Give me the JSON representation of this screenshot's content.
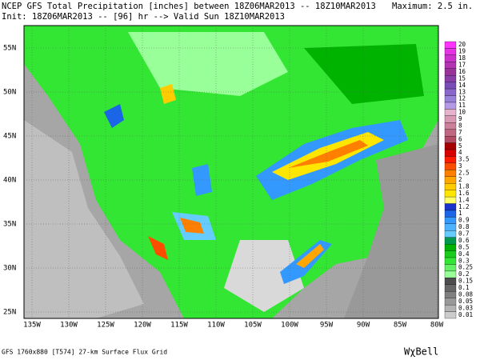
{
  "header": {
    "title": "NCEP GFS Total Precipitation [inches] between 18Z06MAR2013 -- 18Z10MAR2013",
    "maximum": "Maximum:  2.5 in.",
    "init": "Init: 18Z06MAR2013 -- [96] hr --> Valid Sun 18Z10MAR2013"
  },
  "map": {
    "lat_labels": [
      "55N",
      "50N",
      "45N",
      "40N",
      "35N",
      "30N",
      "25N"
    ],
    "lon_labels": [
      "135W",
      "130W",
      "125W",
      "120W",
      "115W",
      "110W",
      "105W",
      "100W",
      "95W",
      "90W",
      "85W",
      "80W"
    ]
  },
  "legend": {
    "items": [
      {
        "label": "20",
        "color": "#ff33ff"
      },
      {
        "label": "19",
        "color": "#e633e6"
      },
      {
        "label": "18",
        "color": "#cc33cc"
      },
      {
        "label": "17",
        "color": "#b333b3"
      },
      {
        "label": "16",
        "color": "#993399"
      },
      {
        "label": "15",
        "color": "#8a3fa8"
      },
      {
        "label": "14",
        "color": "#7a4cb8"
      },
      {
        "label": "13",
        "color": "#8a66cc"
      },
      {
        "label": "12",
        "color": "#9980d9"
      },
      {
        "label": "11",
        "color": "#b399e6"
      },
      {
        "label": "10",
        "color": "#e6b3cc"
      },
      {
        "label": "9",
        "color": "#d999b3"
      },
      {
        "label": "8",
        "color": "#cc8099"
      },
      {
        "label": "7",
        "color": "#bf6680"
      },
      {
        "label": "6",
        "color": "#b34d66"
      },
      {
        "label": "5",
        "color": "#a60000"
      },
      {
        "label": "4",
        "color": "#d90000"
      },
      {
        "label": "3.5",
        "color": "#ff1a00"
      },
      {
        "label": "3",
        "color": "#ff4d00"
      },
      {
        "label": "2.5",
        "color": "#ff8000"
      },
      {
        "label": "2",
        "color": "#ffa600"
      },
      {
        "label": "1.8",
        "color": "#ffcc00"
      },
      {
        "label": "1.6",
        "color": "#ffe600"
      },
      {
        "label": "1.4",
        "color": "#ffff66"
      },
      {
        "label": "1.2",
        "color": "#1a33cc"
      },
      {
        "label": "1",
        "color": "#1a66e6"
      },
      {
        "label": "0.9",
        "color": "#3399ff"
      },
      {
        "label": "0.8",
        "color": "#4db3ff"
      },
      {
        "label": "0.7",
        "color": "#66ccff"
      },
      {
        "label": "0.6",
        "color": "#00994d"
      },
      {
        "label": "0.5",
        "color": "#00b300"
      },
      {
        "label": "0.4",
        "color": "#1acc1a"
      },
      {
        "label": "0.3",
        "color": "#33e633"
      },
      {
        "label": "0.25",
        "color": "#66f066"
      },
      {
        "label": "0.2",
        "color": "#99ff99"
      },
      {
        "label": "0.15",
        "color": "#4d4d4d"
      },
      {
        "label": "0.1",
        "color": "#666666"
      },
      {
        "label": "0.08",
        "color": "#808080"
      },
      {
        "label": "0.05",
        "color": "#999999"
      },
      {
        "label": "0.03",
        "color": "#b3b3b3"
      },
      {
        "label": "0.01",
        "color": "#cccccc"
      }
    ]
  },
  "footer": {
    "source": "GFS 1760x880 [T574] 27-km Surface Flux Grid",
    "brand": "WχBell"
  }
}
